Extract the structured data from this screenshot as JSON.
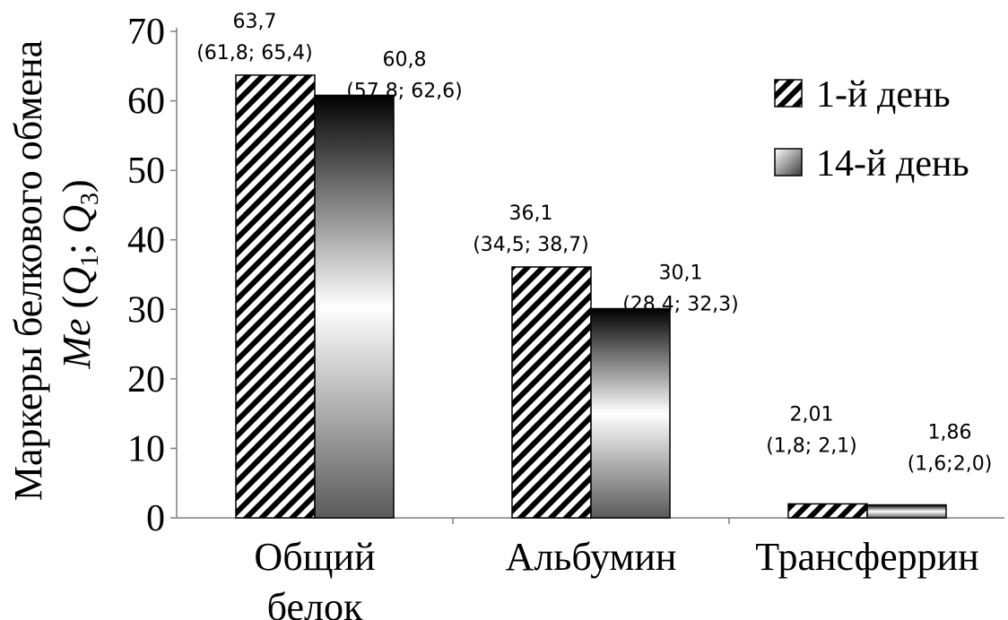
{
  "chart_data": {
    "type": "bar",
    "categories": [
      "Общий белок",
      "Альбумин",
      "Трансферрин"
    ],
    "category_lines": [
      [
        "Общий",
        "белок"
      ],
      [
        "Альбумин"
      ],
      [
        "Трансферрин"
      ]
    ],
    "series": [
      {
        "name": "1-й день",
        "values": [
          63.7,
          36.1,
          2.01
        ],
        "labels": [
          "63,7",
          "36,1",
          "2,01"
        ],
        "ranges": [
          "(61,8; 65,4)",
          "(34,5; 38,7)",
          "(1,8; 2,1)"
        ],
        "fill": "hatched"
      },
      {
        "name": "14-й день",
        "values": [
          60.8,
          30.1,
          1.86
        ],
        "labels": [
          "60,8",
          "30,1",
          "1,86"
        ],
        "ranges": [
          "(57,8; 62,6)",
          "(28,4; 32,3)",
          "(1,6;2,0)"
        ],
        "fill": "gradient"
      }
    ],
    "ylabel_line1": "Маркеры белкового обмена",
    "ylabel_line2": {
      "me": "Me",
      "open": " (",
      "q1": "Q",
      "sub1": "1",
      "sep": "; ",
      "q3": "Q",
      "sub3": "3",
      "close": ")"
    },
    "ylim": [
      0,
      70
    ],
    "yticks": [
      0,
      10,
      20,
      30,
      40,
      50,
      60,
      70
    ],
    "legend_position": "top-right",
    "grid": false
  }
}
